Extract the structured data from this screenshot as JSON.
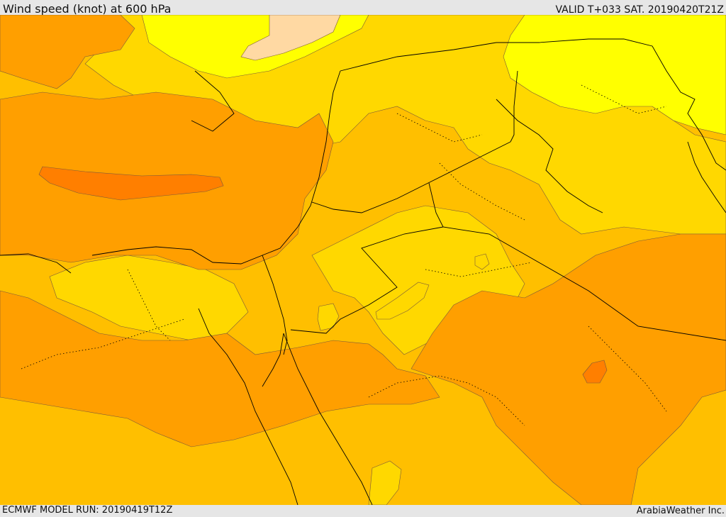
{
  "header": {
    "title": "Wind speed (knot) at 600 hPa",
    "valid_time": "VALID T+033 SAT. 20190420T21Z"
  },
  "footer": {
    "model_run": "ECMWF MODEL RUN: 20190419T12Z",
    "credit": "ArabiaWeather Inc."
  },
  "map": {
    "colors": {
      "band_lowest": "#ffd9a3",
      "band_low": "#ffff00",
      "band_mid_low": "#ffd800",
      "band_mid": "#ffbf00",
      "band_mid_high": "#ff9f00",
      "band_high": "#ff7f00",
      "coastline": "#000000",
      "contour_edge": "#7a5a3a"
    }
  }
}
